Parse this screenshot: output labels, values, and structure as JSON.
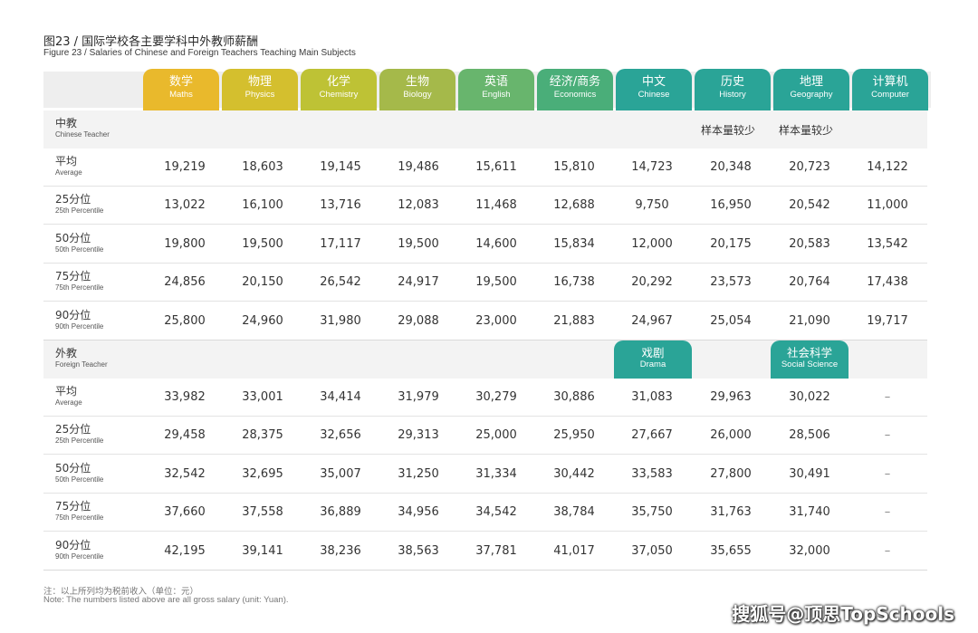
{
  "title_zh": "图23 / 国际学校各主要学科中外教师薪酬",
  "title_en": "Figure 23 /  Salaries of Chinese and Foreign Teachers Teaching Main Subjects",
  "colors": {
    "maths": "#e9b92c",
    "physics": "#d4bf2e",
    "chemistry": "#bec235",
    "biology": "#a5b94a",
    "english": "#68b56d",
    "economics": "#4aae79",
    "teal": "#2aa497"
  },
  "subjects": [
    {
      "zh": "数学",
      "en": "Maths",
      "icon": "maths",
      "color": "#e9b92c"
    },
    {
      "zh": "物理",
      "en": "Physics",
      "icon": "physics",
      "color": "#d4bf2e"
    },
    {
      "zh": "化学",
      "en": "Chemistry",
      "icon": "chemistry",
      "color": "#bec235"
    },
    {
      "zh": "生物",
      "en": "Biology",
      "icon": "biology",
      "color": "#a5b94a"
    },
    {
      "zh": "英语",
      "en": "English",
      "icon": "english",
      "color": "#68b56d"
    },
    {
      "zh": "经济/商务",
      "en": "Economics",
      "icon": "economics",
      "color": "#4aae79"
    },
    {
      "zh": "中文",
      "en": "Chinese",
      "icon": "chinese",
      "color": "#2aa497"
    },
    {
      "zh": "历史",
      "en": "History",
      "icon": "history",
      "color": "#2aa497"
    },
    {
      "zh": "地理",
      "en": "Geography",
      "icon": "geography",
      "color": "#2aa497"
    },
    {
      "zh": "计算机",
      "en": "Computer",
      "icon": "computer",
      "color": "#2aa497"
    }
  ],
  "chinese_section": {
    "zh": "中教",
    "en": "Chinese Teacher",
    "note_history": "样本量较少",
    "note_geography": "样本量较少",
    "rows": [
      {
        "zh": "平均",
        "en": "Average",
        "values": [
          "19,219",
          "18,603",
          "19,145",
          "19,486",
          "15,611",
          "15,810",
          "14,723",
          "20,348",
          "20,723",
          "14,122"
        ]
      },
      {
        "zh": "25分位",
        "en": "25th Percentile",
        "values": [
          "13,022",
          "16,100",
          "13,716",
          "12,083",
          "11,468",
          "12,688",
          "9,750",
          "16,950",
          "20,542",
          "11,000"
        ]
      },
      {
        "zh": "50分位",
        "en": "50th Percentile",
        "values": [
          "19,800",
          "19,500",
          "17,117",
          "19,500",
          "14,600",
          "15,834",
          "12,000",
          "20,175",
          "20,583",
          "13,542"
        ]
      },
      {
        "zh": "75分位",
        "en": "75th Percentile",
        "values": [
          "24,856",
          "20,150",
          "26,542",
          "24,917",
          "19,500",
          "16,738",
          "20,292",
          "23,573",
          "20,764",
          "17,438"
        ]
      },
      {
        "zh": "90分位",
        "en": "90th Percentile",
        "values": [
          "25,800",
          "24,960",
          "31,980",
          "29,088",
          "23,000",
          "21,883",
          "24,967",
          "25,054",
          "21,090",
          "19,717"
        ]
      }
    ]
  },
  "foreign_section": {
    "zh": "外教",
    "en": "Foreign Teacher",
    "tab_drama": {
      "zh": "戏剧",
      "en": "Drama"
    },
    "tab_social": {
      "zh": "社会科学",
      "en": "Social Science"
    },
    "rows": [
      {
        "zh": "平均",
        "en": "Average",
        "values": [
          "33,982",
          "33,001",
          "34,414",
          "31,979",
          "30,279",
          "30,886",
          "31,083",
          "29,963",
          "30,022",
          "–"
        ]
      },
      {
        "zh": "25分位",
        "en": "25th Percentile",
        "values": [
          "29,458",
          "28,375",
          "32,656",
          "29,313",
          "25,000",
          "25,950",
          "27,667",
          "26,000",
          "28,506",
          "–"
        ]
      },
      {
        "zh": "50分位",
        "en": "50th Percentile",
        "values": [
          "32,542",
          "32,695",
          "35,007",
          "31,250",
          "31,334",
          "30,442",
          "33,583",
          "27,800",
          "30,491",
          "–"
        ]
      },
      {
        "zh": "75分位",
        "en": "75th Percentile",
        "values": [
          "37,660",
          "37,558",
          "36,889",
          "34,956",
          "34,542",
          "38,784",
          "35,750",
          "31,763",
          "31,740",
          "–"
        ]
      },
      {
        "zh": "90分位",
        "en": "90th Percentile",
        "values": [
          "42,195",
          "39,141",
          "38,236",
          "38,563",
          "37,781",
          "41,017",
          "37,050",
          "35,655",
          "32,000",
          "–"
        ]
      }
    ]
  },
  "footnote_zh": "注：以上所列均为税前收入（单位：元）",
  "footnote_en": "Note: The numbers listed above are all gross salary (unit: Yuan).",
  "watermark": "搜狐号@顶思TopSchools"
}
